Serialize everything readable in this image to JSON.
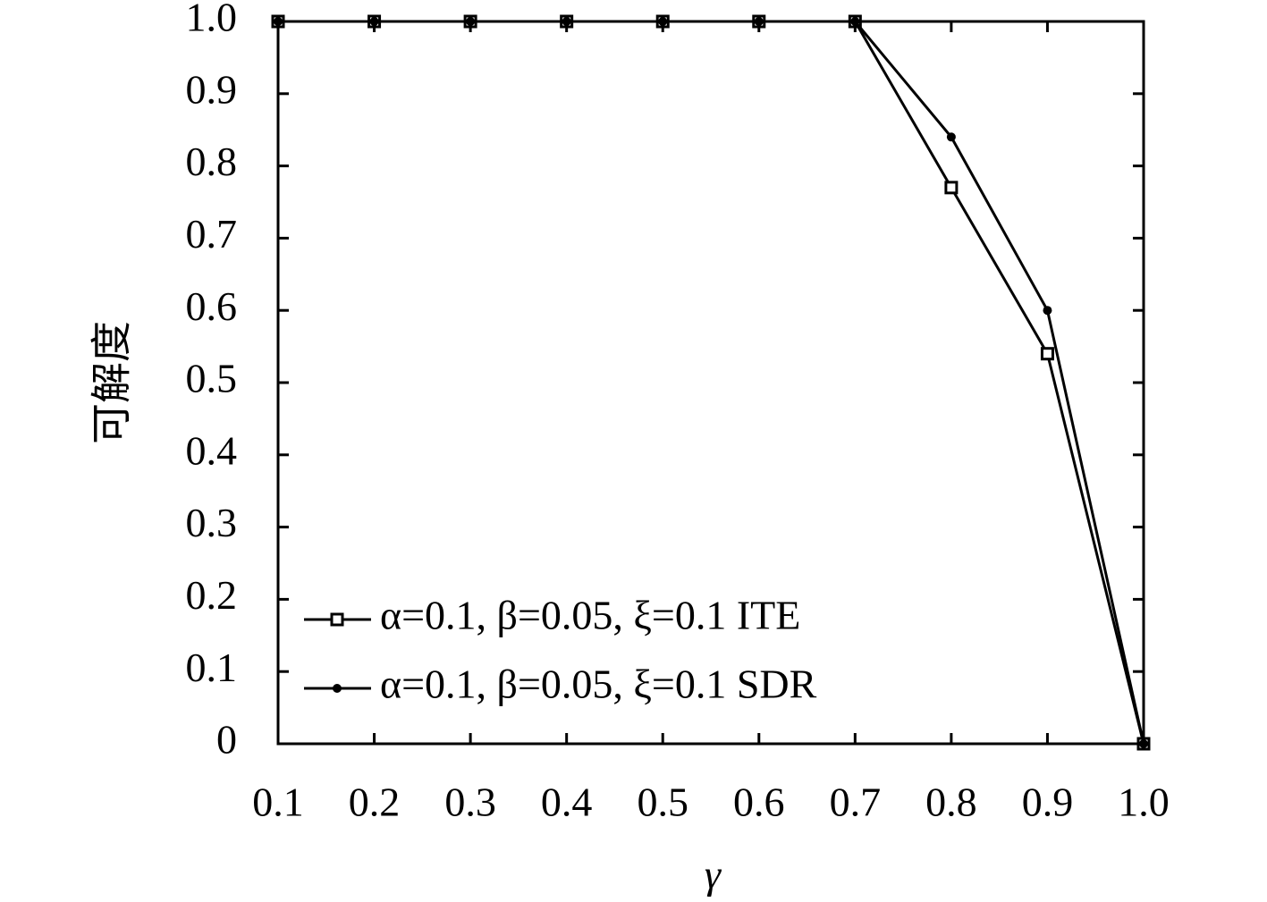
{
  "chart_data": {
    "type": "line",
    "x_label": "γ",
    "y_label": "可解度",
    "x": [
      0.1,
      0.2,
      0.3,
      0.4,
      0.5,
      0.6,
      0.7,
      0.8,
      0.9,
      1.0
    ],
    "xlim": [
      0.1,
      1.0
    ],
    "xticks": [
      0.1,
      0.2,
      0.3,
      0.4,
      0.5,
      0.6,
      0.7,
      0.8,
      0.9,
      {
        "value": 1.0,
        "label": "1.0"
      }
    ],
    "ylim": [
      0,
      1
    ],
    "yticks": [
      0,
      0.1,
      0.2,
      0.3,
      0.4,
      0.5,
      0.6,
      0.7,
      0.8,
      0.9,
      {
        "value": 1,
        "label": "1.0"
      }
    ],
    "legend": "lower left",
    "series": [
      {
        "name": "α=0.1, β=0.05, ξ=0.1 ITE",
        "color": "#000000",
        "marker": "square",
        "values": [
          1,
          1,
          1,
          1,
          1,
          1,
          1,
          0.77,
          0.54,
          0
        ]
      },
      {
        "name": "α=0.1, β=0.05, ξ=0.1 SDR",
        "color": "#000000",
        "marker": "circle",
        "values": [
          1,
          1,
          1,
          1,
          1,
          1,
          1,
          0.84,
          0.6,
          0
        ]
      }
    ]
  }
}
